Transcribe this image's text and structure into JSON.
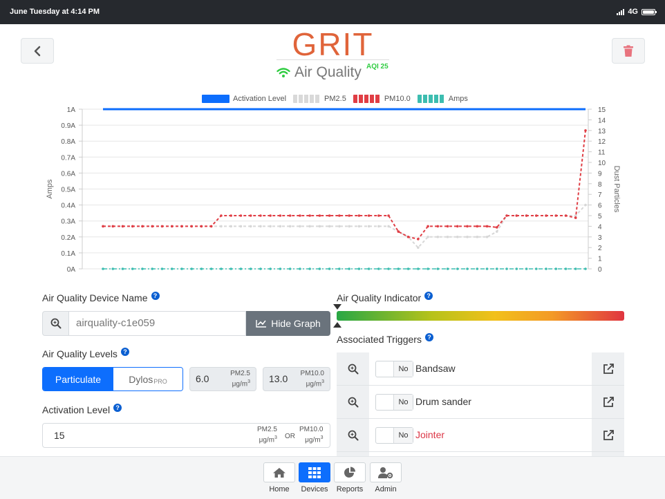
{
  "status_bar": {
    "time": "June Tuesday at 4:14 PM",
    "network": "4G",
    "icons": [
      "signal-bars-icon",
      "battery-icon"
    ]
  },
  "header": {
    "logo": "GRIT",
    "subtitle": "Air Quality",
    "aqi": "AQI 25",
    "icons": [
      "back-chevron-icon",
      "trash-icon",
      "wifi-icon"
    ],
    "colors": {
      "logo": "#e0643a",
      "wifi": "#2ecc40",
      "aqi": "#2ecc40",
      "trash": "#e8737e"
    }
  },
  "chart_data": {
    "type": "line",
    "legend": [
      "Activation Level",
      "PM2.5",
      "PM10.0",
      "Amps"
    ],
    "legend_position": "top",
    "left_axis": {
      "label": "Amps",
      "ticks": [
        "0A",
        "0.1A",
        "0.2A",
        "0.3A",
        "0.4A",
        "0.5A",
        "0.6A",
        "0.7A",
        "0.8A",
        "0.9A",
        "1A"
      ],
      "range": [
        0,
        1
      ]
    },
    "right_axis": {
      "label": "Dust Particles",
      "ticks": [
        "0",
        "1",
        "2",
        "3",
        "4",
        "5",
        "6",
        "7",
        "8",
        "9",
        "10",
        "11",
        "12",
        "13",
        "14",
        "15"
      ],
      "range": [
        0,
        15
      ]
    },
    "grid": true,
    "series": [
      {
        "name": "Activation Level",
        "axis": "right",
        "style": "solid",
        "color": "#0d6efd",
        "values": [
          15,
          15,
          15,
          15,
          15,
          15,
          15,
          15,
          15,
          15,
          15,
          15,
          15,
          15,
          15,
          15,
          15,
          15,
          15,
          15,
          15,
          15,
          15,
          15,
          15,
          15,
          15,
          15,
          15,
          15,
          15,
          15,
          15,
          15,
          15,
          15,
          15,
          15,
          15,
          15,
          15,
          15,
          15,
          15,
          15,
          15,
          15,
          15,
          15,
          15
        ]
      },
      {
        "name": "PM2.5",
        "axis": "right",
        "style": "dashed",
        "color": "#d7d7d7",
        "values": [
          4,
          4,
          4,
          4,
          4,
          4,
          4,
          4,
          4,
          4,
          4,
          4,
          4,
          4,
          4,
          4,
          4,
          4,
          4,
          4,
          4,
          4,
          4,
          4,
          4,
          4,
          4,
          4,
          4,
          4,
          3.5,
          3,
          2,
          3,
          3,
          3,
          3,
          3,
          3,
          3,
          3.5,
          5,
          5,
          5,
          5,
          5,
          5,
          5,
          5,
          6
        ]
      },
      {
        "name": "PM10.0",
        "axis": "right",
        "style": "dashed",
        "color": "#e03e45",
        "values": [
          4,
          4,
          4,
          4,
          4,
          4,
          4,
          4,
          4,
          4,
          4,
          4,
          5,
          5,
          5,
          5,
          5,
          5,
          5,
          5,
          5,
          5,
          5,
          5,
          5,
          5,
          5,
          5,
          5,
          5,
          3.5,
          3,
          2.8,
          4,
          4,
          4,
          4,
          4,
          4,
          4,
          3.9,
          5,
          5,
          5,
          5,
          5,
          5,
          5,
          4.8,
          13
        ]
      },
      {
        "name": "Amps",
        "axis": "left",
        "style": "dash-dot",
        "color": "#3dbdb0",
        "values": [
          0,
          0,
          0,
          0,
          0,
          0,
          0,
          0,
          0,
          0,
          0,
          0,
          0,
          0,
          0,
          0,
          0,
          0,
          0,
          0,
          0,
          0,
          0,
          0,
          0,
          0,
          0,
          0,
          0,
          0,
          0,
          0,
          0,
          0,
          0,
          0,
          0,
          0,
          0,
          0,
          0,
          0,
          0,
          0,
          0,
          0,
          0,
          0,
          0,
          0
        ]
      }
    ]
  },
  "form": {
    "device_name_label": "Air Quality Device Name",
    "device_name_value": "airquality-c1e059",
    "hide_graph_label": "Hide Graph",
    "levels_label": "Air Quality Levels",
    "seg_particulate": "Particulate",
    "seg_dylos": "Dylos",
    "seg_dylos_sub": "PRO",
    "pm25_value": "6.0",
    "pm10_value": "13.0",
    "pm25_unit_a": "PM2.5",
    "pm10_unit_a": "PM10.0",
    "unit_b": "μg/m",
    "unit_sup": "3",
    "activation_label": "Activation Level",
    "activation_value": "15",
    "or_text": "OR",
    "help": "?"
  },
  "indicator": {
    "label": "Air Quality Indicator",
    "level_fraction": 0.0
  },
  "triggers": {
    "label": "Associated Triggers",
    "toggle_text": "No",
    "items": [
      {
        "name": "Bandsaw",
        "color": "#333333"
      },
      {
        "name": "Drum sander",
        "color": "#333333"
      },
      {
        "name": "Jointer",
        "color": "#dc3545"
      }
    ]
  },
  "nav": {
    "items": [
      "Home",
      "Devices",
      "Reports",
      "Admin"
    ],
    "active": "Devices"
  }
}
